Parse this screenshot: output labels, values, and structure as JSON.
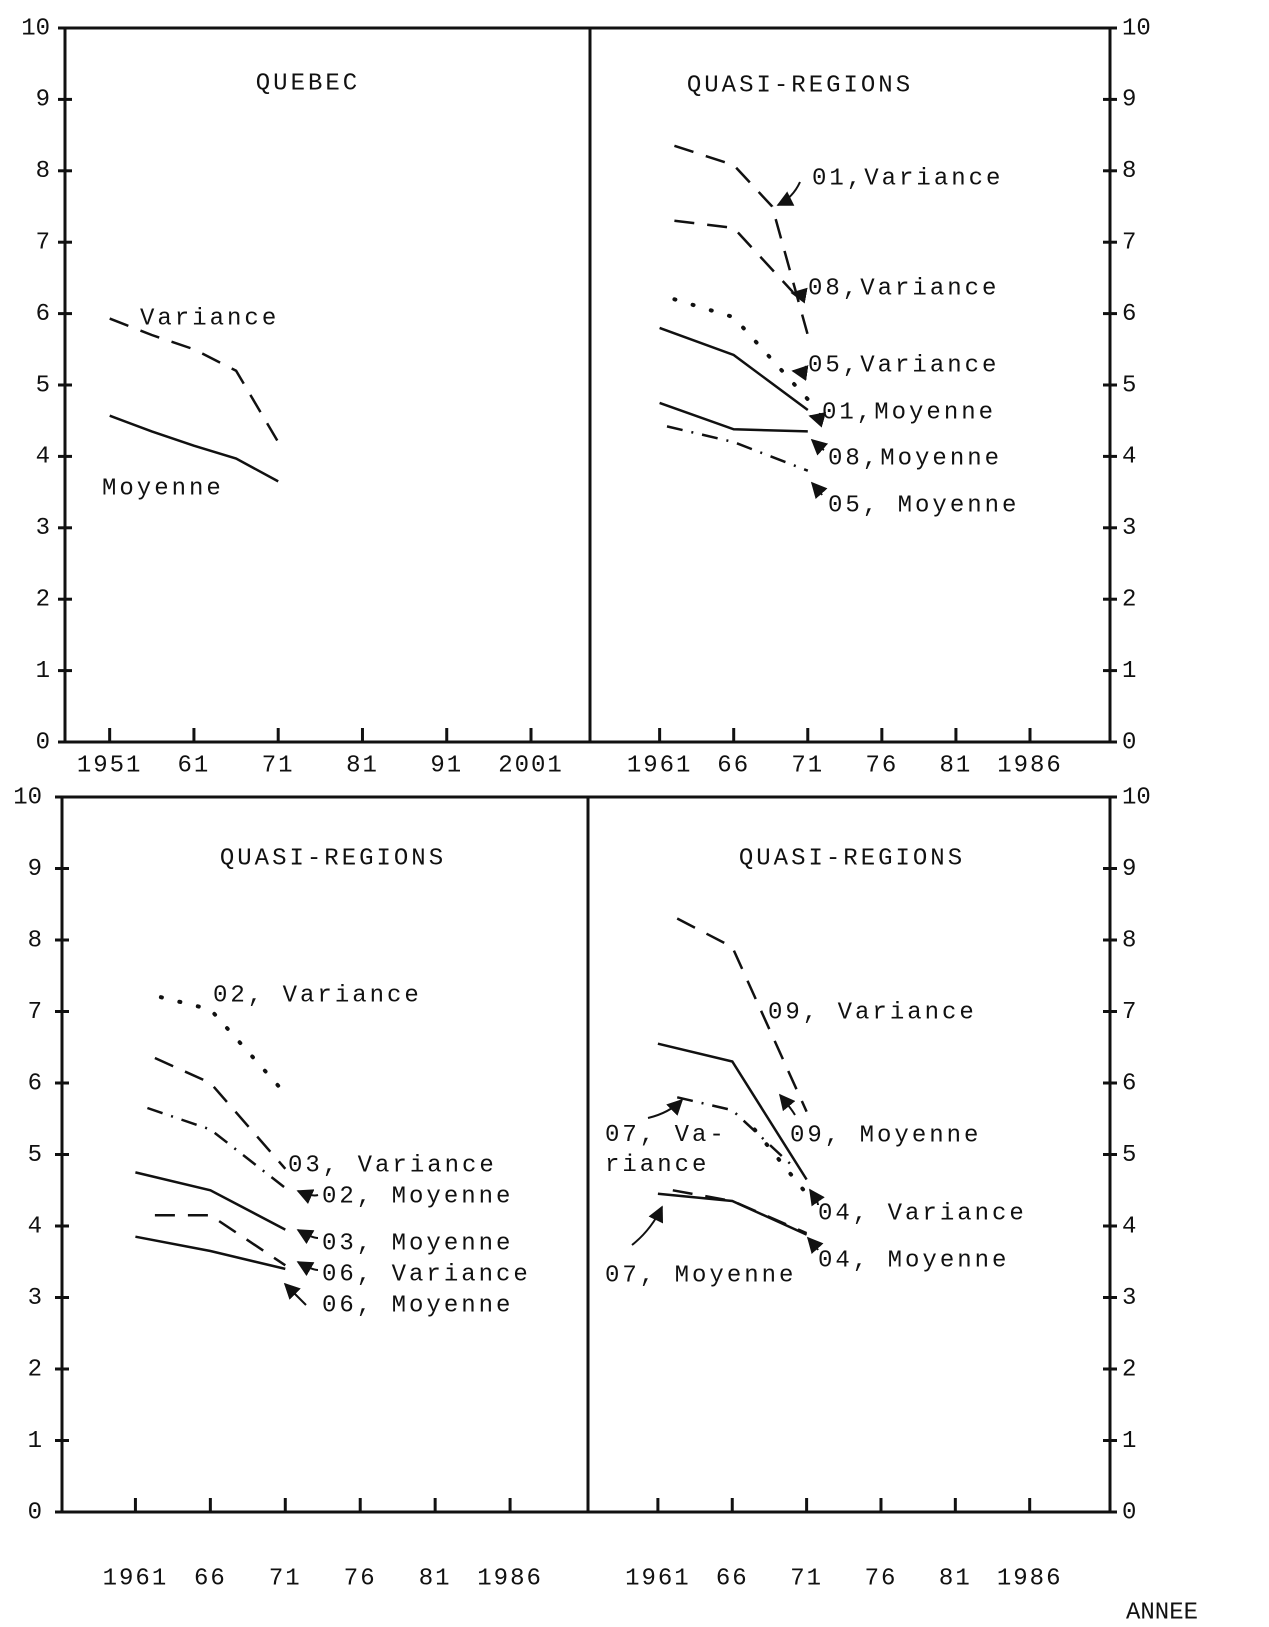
{
  "chart_data": [
    {
      "type": "line",
      "title": "QUEBEC",
      "color": "#111111",
      "xlim": [
        1945.7,
        2008
      ],
      "xticks": [
        1951,
        {
          "value": 1961,
          "label": "61"
        },
        {
          "value": 1971,
          "label": "71"
        },
        {
          "value": 1981,
          "label": "81"
        },
        {
          "value": 1991,
          "label": "91"
        },
        2001
      ],
      "ylim": [
        0,
        10
      ],
      "yticks": [
        0,
        1,
        2,
        3,
        4,
        5,
        6,
        7,
        8,
        9,
        10
      ],
      "series": [
        {
          "name": "Variance",
          "dash": "dashed",
          "x": [
            1951,
            1956,
            1961,
            1966,
            1971
          ],
          "values": [
            5.93,
            5.7,
            5.5,
            5.2,
            4.2
          ]
        },
        {
          "name": "Moyenne",
          "dash": "solid",
          "x": [
            1951,
            1956,
            1961,
            1966,
            1971
          ],
          "values": [
            4.57,
            4.35,
            4.15,
            3.97,
            3.65
          ]
        }
      ]
    },
    {
      "type": "line",
      "title": "QUASI-REGIONS",
      "color": "#111111",
      "xlim": [
        1956.3,
        1991.4
      ],
      "xticks": [
        1961,
        {
          "value": 1966,
          "label": "66"
        },
        {
          "value": 1971,
          "label": "71"
        },
        {
          "value": 1976,
          "label": "76"
        },
        {
          "value": 1981,
          "label": "81"
        },
        1986
      ],
      "ylim": [
        0,
        10
      ],
      "yticks": [
        0,
        1,
        2,
        3,
        4,
        5,
        6,
        7,
        8,
        9,
        10
      ],
      "series": [
        {
          "name": "01,Variance",
          "dash": "dashed",
          "x": [
            1962,
            1966,
            1968.6,
            1971
          ],
          "values": [
            8.35,
            8.08,
            7.5,
            5.7
          ]
        },
        {
          "name": "08,Variance",
          "dash": "dashed",
          "x": [
            1962,
            1966,
            1970
          ],
          "values": [
            7.3,
            7.2,
            6.3
          ]
        },
        {
          "name": "05,Variance",
          "dash": "dotted",
          "x": [
            1962,
            1966,
            1971
          ],
          "values": [
            6.2,
            5.95,
            4.8
          ]
        },
        {
          "name": "01,Moyenne",
          "dash": "solid",
          "x": [
            1961,
            1966,
            1971
          ],
          "values": [
            5.8,
            5.42,
            4.65
          ]
        },
        {
          "name": "08,Moyenne",
          "dash": "solid",
          "x": [
            1961,
            1966,
            1971
          ],
          "values": [
            4.75,
            4.38,
            4.35
          ]
        },
        {
          "name": "05, Moyenne",
          "dash": "dashdot",
          "x": [
            1961.5,
            1966,
            1971
          ],
          "values": [
            4.42,
            4.2,
            3.8
          ]
        }
      ]
    },
    {
      "type": "line",
      "title": "QUASI-REGIONS",
      "color": "#111111",
      "xlim": [
        1956.1,
        1991.2
      ],
      "xticks": [
        1961,
        {
          "value": 1966,
          "label": "66"
        },
        {
          "value": 1971,
          "label": "71"
        },
        {
          "value": 1976,
          "label": "76"
        },
        {
          "value": 1981,
          "label": "81"
        },
        1986
      ],
      "ylim": [
        0,
        10
      ],
      "yticks": [
        0,
        1,
        2,
        3,
        4,
        5,
        6,
        7,
        8,
        9,
        10
      ],
      "series": [
        {
          "name": "02, Variance",
          "dash": "dotted",
          "x": [
            1962.7,
            1966,
            1971
          ],
          "values": [
            7.2,
            7.03,
            5.85
          ]
        },
        {
          "name": "03, Variance",
          "dash": "dashed",
          "x": [
            1962.3,
            1966,
            1971
          ],
          "values": [
            6.35,
            6.0,
            4.8
          ]
        },
        {
          "name": "02, Moyenne",
          "dash": "dashdot",
          "x": [
            1961.8,
            1966,
            1971.2
          ],
          "values": [
            5.65,
            5.35,
            4.5
          ]
        },
        {
          "name": "03, Moyenne",
          "dash": "solid",
          "x": [
            1961,
            1966,
            1971
          ],
          "values": [
            4.75,
            4.5,
            3.95
          ]
        },
        {
          "name": "06, Variance",
          "dash": "dashed",
          "x": [
            1962.3,
            1966,
            1971
          ],
          "values": [
            4.15,
            4.15,
            3.45
          ]
        },
        {
          "name": "06, Moyenne",
          "dash": "solid",
          "x": [
            1961,
            1966,
            1971
          ],
          "values": [
            3.85,
            3.65,
            3.4
          ]
        }
      ]
    },
    {
      "type": "line",
      "title": "QUASI-REGIONS",
      "xlabel": "ANNEE",
      "color": "#111111",
      "xlim": [
        1956.3,
        1991.4
      ],
      "xticks": [
        1961,
        {
          "value": 1966,
          "label": "66"
        },
        {
          "value": 1971,
          "label": "71"
        },
        {
          "value": 1976,
          "label": "76"
        },
        {
          "value": 1981,
          "label": "81"
        },
        1986
      ],
      "ylim": [
        0,
        10
      ],
      "yticks": [
        0,
        1,
        2,
        3,
        4,
        5,
        6,
        7,
        8,
        9,
        10
      ],
      "series": [
        {
          "name": "09, Variance",
          "dash": "dashed",
          "x": [
            1962.3,
            1966,
            1971
          ],
          "values": [
            8.3,
            7.9,
            5.6
          ]
        },
        {
          "name": "09, Moyenne",
          "dash": "solid",
          "x": [
            1961,
            1966,
            1971
          ],
          "values": [
            6.55,
            6.3,
            4.65
          ]
        },
        {
          "name": "07, Va-\nriance",
          "dash": "dashdot",
          "x": [
            1962.3,
            1966,
            1970
          ],
          "values": [
            5.8,
            5.62,
            4.85
          ]
        },
        {
          "name": "04, Variance",
          "dash": "dotted",
          "x": [
            1967.5,
            1971
          ],
          "values": [
            5.35,
            4.45
          ]
        },
        {
          "name": "07, Moyenne",
          "dash": "solid",
          "x": [
            1961,
            1966,
            1971
          ],
          "values": [
            4.45,
            4.35,
            3.88
          ]
        },
        {
          "name": "04, Moyenne",
          "dash": "dashed",
          "x": [
            1962,
            1966,
            1971
          ],
          "values": [
            4.5,
            4.35,
            3.9
          ]
        }
      ]
    }
  ]
}
